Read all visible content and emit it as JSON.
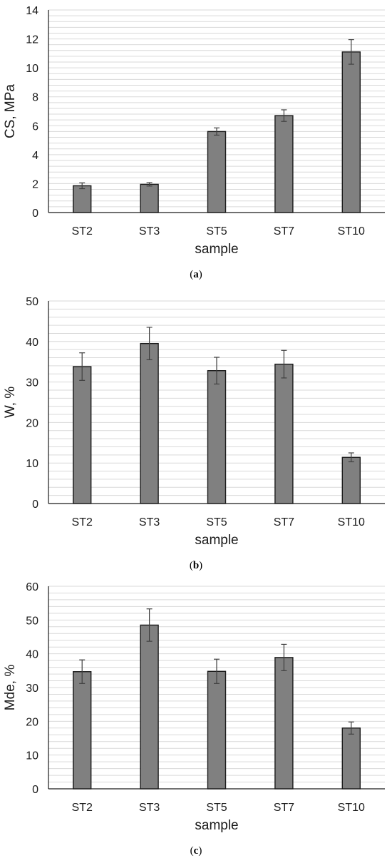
{
  "chart_data": [
    {
      "type": "bar",
      "caption_letter": "a",
      "ylabel": "CS, MPa",
      "xlabel": "sample",
      "categories": [
        "ST2",
        "ST3",
        "ST5",
        "ST7",
        "ST10"
      ],
      "values": [
        1.85,
        1.95,
        5.6,
        6.7,
        11.1
      ],
      "errors": [
        0.2,
        0.12,
        0.25,
        0.4,
        0.85
      ],
      "ylim": [
        0,
        14
      ],
      "yticks": [
        0,
        2,
        4,
        6,
        8,
        10,
        12,
        14
      ],
      "grid": true
    },
    {
      "type": "bar",
      "caption_letter": "b",
      "ylabel": "W, %",
      "xlabel": "sample",
      "categories": [
        "ST2",
        "ST3",
        "ST5",
        "ST7",
        "ST10"
      ],
      "values": [
        33.8,
        39.5,
        32.8,
        34.4,
        11.4
      ],
      "errors": [
        3.4,
        4.0,
        3.3,
        3.4,
        1.1
      ],
      "ylim": [
        0,
        50
      ],
      "yticks": [
        0,
        10,
        20,
        30,
        40,
        50
      ],
      "grid": true
    },
    {
      "type": "bar",
      "caption_letter": "c",
      "ylabel": "Mde, %",
      "xlabel": "sample",
      "categories": [
        "ST2",
        "ST3",
        "ST5",
        "ST7",
        "ST10"
      ],
      "values": [
        34.7,
        48.5,
        34.8,
        38.9,
        18.0
      ],
      "errors": [
        3.5,
        4.8,
        3.6,
        3.9,
        1.8
      ],
      "ylim": [
        0,
        60
      ],
      "yticks": [
        0,
        10,
        20,
        30,
        40,
        50,
        60
      ],
      "grid": true
    }
  ],
  "colors": {
    "bar_fill": "#808080",
    "bar_stroke": "#1a1a1a",
    "grid": "#d9d9d9",
    "axis": "#1a1a1a",
    "error_bar": "#404040"
  }
}
